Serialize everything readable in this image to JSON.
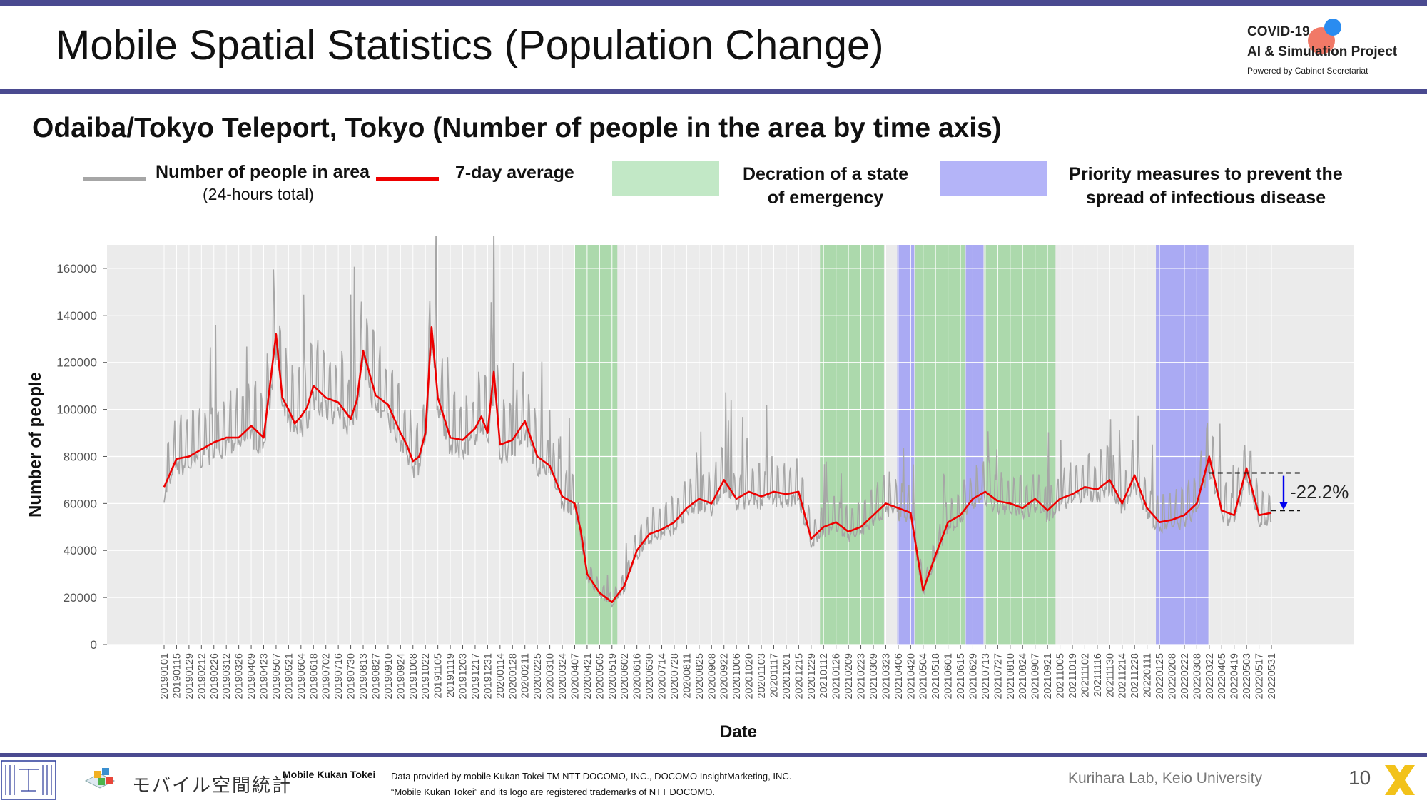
{
  "header": {
    "title": "Mobile Spatial Statistics (Population Change)",
    "logo_line1": "COVID-19",
    "logo_line2": "AI & Simulation Project",
    "logo_line3": "Powered by Cabinet Secretariat"
  },
  "subtitle": "Odaiba/Tokyo Teleport, Tokyo (Number of people in the area by time axis)",
  "legend": {
    "raw_label": "Number of people in area",
    "raw_sub": "(24-hours total)",
    "avg_label": "7-day average",
    "soe_label_1": "Decration of a state",
    "soe_label_2": "of emergency",
    "pm_label_1": "Priority measures to prevent the",
    "pm_label_2": "spread of infectious disease"
  },
  "colors": {
    "raw": "#a6a6a6",
    "avg": "#ee0000",
    "soe": "#a9d8a9",
    "pm": "#a7a7f3",
    "plot_bg": "#ebebeb",
    "arrow": "#0000ee"
  },
  "chart_data": {
    "type": "line",
    "xlabel": "Date",
    "ylabel": "Number of people",
    "ylim": [
      0,
      170000
    ],
    "yticks": [
      "0",
      "20000",
      "40000",
      "60000",
      "80000",
      "100000",
      "120000",
      "140000",
      "160000"
    ],
    "xticks": [
      "20190101",
      "20190115",
      "20190129",
      "20190212",
      "20190226",
      "20190312",
      "20190326",
      "20190409",
      "20190423",
      "20190507",
      "20190521",
      "20190604",
      "20190618",
      "20190702",
      "20190716",
      "20190730",
      "20190813",
      "20190827",
      "20190910",
      "20190924",
      "20191008",
      "20191022",
      "20191105",
      "20191119",
      "20191203",
      "20191217",
      "20191231",
      "20200114",
      "20200128",
      "20200211",
      "20200225",
      "20200310",
      "20200324",
      "20200407",
      "20200421",
      "20200505",
      "20200519",
      "20200602",
      "20200616",
      "20200630",
      "20200714",
      "20200728",
      "20200811",
      "20200825",
      "20200908",
      "20200922",
      "20201006",
      "20201020",
      "20201103",
      "20201117",
      "20201201",
      "20201215",
      "20201229",
      "20210112",
      "20210126",
      "20210209",
      "20210223",
      "20210309",
      "20210323",
      "20210406",
      "20210420",
      "20210504",
      "20210518",
      "20210601",
      "20210615",
      "20210629",
      "20210713",
      "20210727",
      "20210810",
      "20210824",
      "20210907",
      "20210921",
      "20211005",
      "20211019",
      "20211102",
      "20211116",
      "20211130",
      "20211214",
      "20211228",
      "20220111",
      "20220125",
      "20220208",
      "20220222",
      "20220308",
      "20220322",
      "20220405",
      "20220419",
      "20220503",
      "20220517",
      "20220531"
    ],
    "grid": true,
    "legend_position": "top",
    "series": [
      {
        "name": "7-day average",
        "points": [
          [
            "20190101",
            67000
          ],
          [
            "20190115",
            79000
          ],
          [
            "20190129",
            80000
          ],
          [
            "20190212",
            83000
          ],
          [
            "20190226",
            86000
          ],
          [
            "20190312",
            88000
          ],
          [
            "20190326",
            88000
          ],
          [
            "20190409",
            93000
          ],
          [
            "20190423",
            88000
          ],
          [
            "20190507",
            132000
          ],
          [
            "20190514",
            105000
          ],
          [
            "20190521",
            100000
          ],
          [
            "20190528",
            94000
          ],
          [
            "20190604",
            97000
          ],
          [
            "20190611",
            101000
          ],
          [
            "20190618",
            110000
          ],
          [
            "20190702",
            105000
          ],
          [
            "20190716",
            103000
          ],
          [
            "20190730",
            96000
          ],
          [
            "20190806",
            104000
          ],
          [
            "20190813",
            125000
          ],
          [
            "20190827",
            106000
          ],
          [
            "20190910",
            102000
          ],
          [
            "20190924",
            90000
          ],
          [
            "20191001",
            85000
          ],
          [
            "20191008",
            78000
          ],
          [
            "20191015",
            80000
          ],
          [
            "20191022",
            90000
          ],
          [
            "20191029",
            135000
          ],
          [
            "20191105",
            105000
          ],
          [
            "20191119",
            88000
          ],
          [
            "20191203",
            87000
          ],
          [
            "20191217",
            92000
          ],
          [
            "20191224",
            97000
          ],
          [
            "20191231",
            90000
          ],
          [
            "20200107",
            116000
          ],
          [
            "20200114",
            85000
          ],
          [
            "20200128",
            87000
          ],
          [
            "20200211",
            95000
          ],
          [
            "20200225",
            80000
          ],
          [
            "20200310",
            76000
          ],
          [
            "20200324",
            63000
          ],
          [
            "20200407",
            60000
          ],
          [
            "20200414",
            48000
          ],
          [
            "20200421",
            30000
          ],
          [
            "20200505",
            22000
          ],
          [
            "20200519",
            18000
          ],
          [
            "20200602",
            25000
          ],
          [
            "20200616",
            40000
          ],
          [
            "20200630",
            47000
          ],
          [
            "20200714",
            49000
          ],
          [
            "20200728",
            52000
          ],
          [
            "20200811",
            58000
          ],
          [
            "20200825",
            62000
          ],
          [
            "20200908",
            60000
          ],
          [
            "20200922",
            70000
          ],
          [
            "20201006",
            62000
          ],
          [
            "20201020",
            65000
          ],
          [
            "20201103",
            63000
          ],
          [
            "20201117",
            65000
          ],
          [
            "20201201",
            64000
          ],
          [
            "20201215",
            65000
          ],
          [
            "20201229",
            45000
          ],
          [
            "20210112",
            50000
          ],
          [
            "20210126",
            52000
          ],
          [
            "20210209",
            48000
          ],
          [
            "20210223",
            50000
          ],
          [
            "20210309",
            55000
          ],
          [
            "20210323",
            60000
          ],
          [
            "20210406",
            58000
          ],
          [
            "20210420",
            56000
          ],
          [
            "20210504",
            23000
          ],
          [
            "20210518",
            38000
          ],
          [
            "20210601",
            52000
          ],
          [
            "20210615",
            55000
          ],
          [
            "20210629",
            62000
          ],
          [
            "20210713",
            65000
          ],
          [
            "20210727",
            61000
          ],
          [
            "20210810",
            60000
          ],
          [
            "20210824",
            58000
          ],
          [
            "20210907",
            62000
          ],
          [
            "20210921",
            57000
          ],
          [
            "20211005",
            62000
          ],
          [
            "20211019",
            64000
          ],
          [
            "20211102",
            67000
          ],
          [
            "20211116",
            66000
          ],
          [
            "20211130",
            70000
          ],
          [
            "20211214",
            60000
          ],
          [
            "20211228",
            72000
          ],
          [
            "20220111",
            58000
          ],
          [
            "20220125",
            52000
          ],
          [
            "20220208",
            53000
          ],
          [
            "20220222",
            55000
          ],
          [
            "20220308",
            60000
          ],
          [
            "20220322",
            80000
          ],
          [
            "20220405",
            57000
          ],
          [
            "20220419",
            55000
          ],
          [
            "20220503",
            75000
          ],
          [
            "20220517",
            55000
          ],
          [
            "20220531",
            56000
          ]
        ]
      }
    ],
    "shaded_periods": [
      {
        "type": "Decration of a state of emergency",
        "start": "20200407",
        "end": "20200525"
      },
      {
        "type": "Decration of a state of emergency",
        "start": "20210108",
        "end": "20210321"
      },
      {
        "type": "Priority measures to prevent the spread of infectious disease",
        "start": "20210405",
        "end": "20210424"
      },
      {
        "type": "Decration of a state of emergency",
        "start": "20210425",
        "end": "20210620"
      },
      {
        "type": "Priority measures to prevent the spread of infectious disease",
        "start": "20210621",
        "end": "20210711"
      },
      {
        "type": "Decration of a state of emergency",
        "start": "20210712",
        "end": "20210930"
      },
      {
        "type": "Priority measures to prevent the spread of infectious disease",
        "start": "20220121",
        "end": "20220321"
      }
    ],
    "annotation": {
      "text": "-22.2%",
      "from_value": 73000,
      "to_value": 57000
    }
  },
  "footer": {
    "logo_text": "モバイル空間統計",
    "product_name": "Mobile Kukan Tokei",
    "credit_line1": "Data provided by mobile Kukan Tokei TM NTT DOCOMO, INC., DOCOMO InsightMarketing, INC.",
    "credit_line2": "“Mobile Kukan Tokei” and its logo are registered trademarks of NTT DOCOMO.",
    "lab": "Kurihara Lab, Keio University",
    "page_number": "10"
  }
}
